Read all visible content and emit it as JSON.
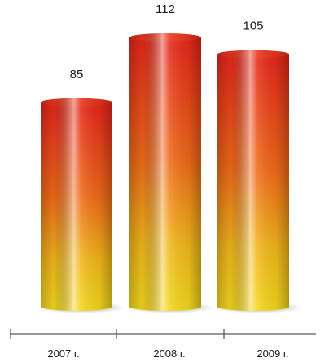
{
  "chart_data": {
    "type": "bar",
    "title": "",
    "xlabel": "",
    "ylabel": "",
    "categories": [
      "2007 г.",
      "2008 г.",
      "2009 г."
    ],
    "values": [
      85,
      112,
      105
    ],
    "data_labels": [
      "85",
      "112",
      "105"
    ],
    "ylim": [
      0,
      112
    ],
    "grid": false,
    "legend": "none",
    "colors": {
      "top": "#e5251a",
      "middle": "#f08a1a",
      "bottom": "#f2d81c",
      "axis": "#333333"
    }
  }
}
